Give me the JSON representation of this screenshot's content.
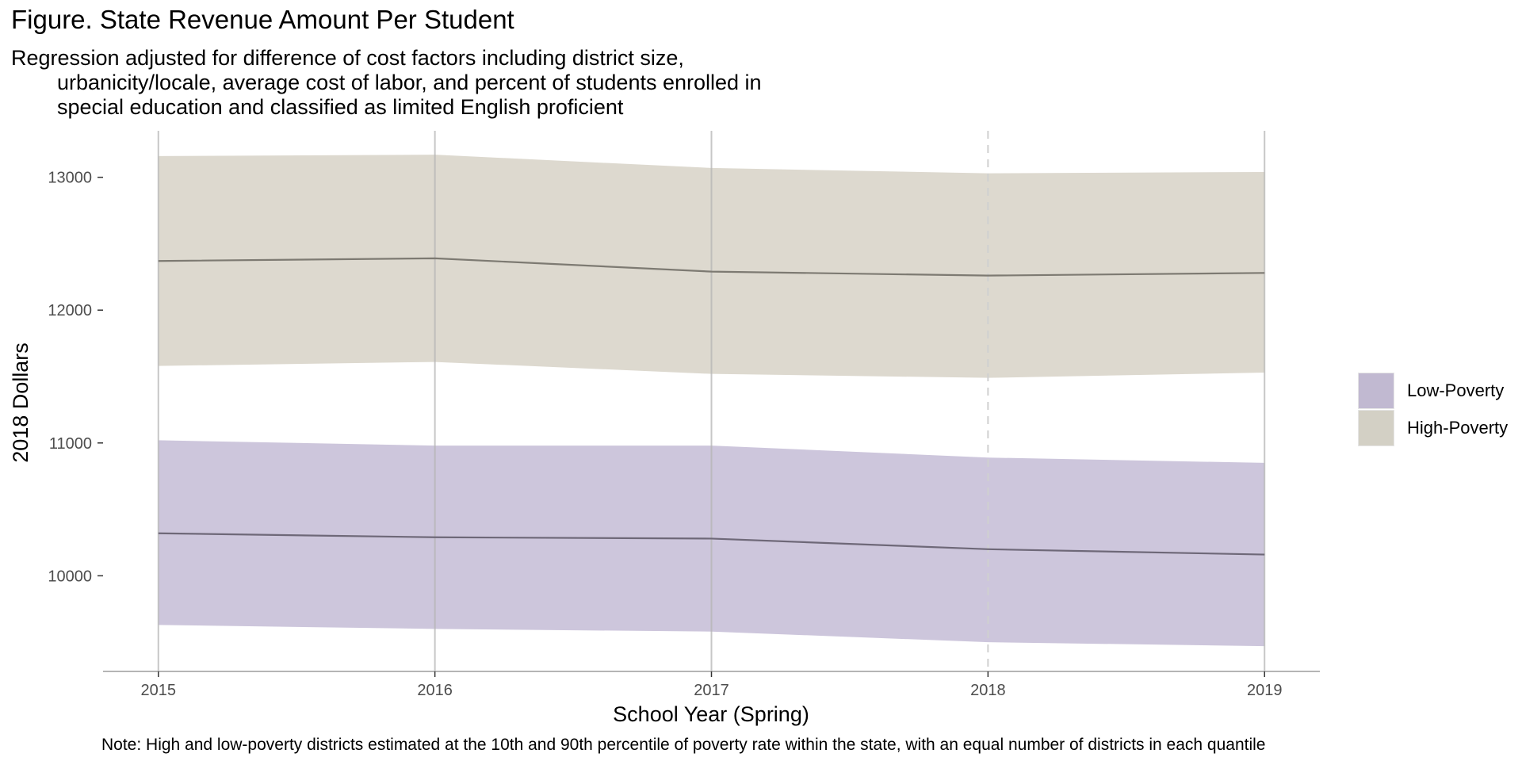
{
  "title": "Figure. State Revenue Amount Per Student",
  "subtitle": [
    "Regression adjusted for difference of cost factors including district size,",
    "urbanicity/locale, average cost of labor, and percent of students enrolled in",
    "special education and classified as limited English proficient"
  ],
  "caption": "Note: High and low-poverty districts estimated at the 10th and 90th percentile of poverty rate within the state, with an equal number of districts in each quantile",
  "colors": {
    "low_band": "#cdc6dc",
    "low_line": "#6e6878",
    "low_key": "#c1b9d1",
    "high_band": "#ddd9cf",
    "high_line": "#7d7a72",
    "high_key": "#d3d0c5",
    "gridline": "#b4b4b4",
    "dashed": "#d0d0d0",
    "axis": "#b5b5b5"
  },
  "chart_data": {
    "type": "area",
    "title": "Figure. State Revenue Amount Per Student",
    "xlabel": "School Year (Spring)",
    "ylabel": "2018 Dollars",
    "x": [
      2015,
      2016,
      2017,
      2018,
      2019
    ],
    "xlim": [
      2014.8,
      2019.2
    ],
    "ylim": [
      9280,
      13350
    ],
    "yticks": [
      10000,
      11000,
      12000,
      13000
    ],
    "ytick_labels": [
      "10000",
      "11000",
      "12000",
      "13000"
    ],
    "xtick_labels": [
      "2015",
      "2016",
      "2017",
      "2018",
      "2019"
    ],
    "dashed_vline": 2018,
    "legend_position": "right",
    "series": [
      {
        "name": "Low-Poverty",
        "values": [
          10320,
          10290,
          10280,
          10200,
          10160
        ],
        "lower": [
          9630,
          9600,
          9580,
          9500,
          9470
        ],
        "upper": [
          11020,
          10980,
          10980,
          10890,
          10850
        ]
      },
      {
        "name": "High-Poverty",
        "values": [
          12370,
          12390,
          12290,
          12260,
          12280
        ],
        "lower": [
          11580,
          11610,
          11520,
          11490,
          11530
        ],
        "upper": [
          13160,
          13170,
          13070,
          13030,
          13040
        ]
      }
    ]
  }
}
